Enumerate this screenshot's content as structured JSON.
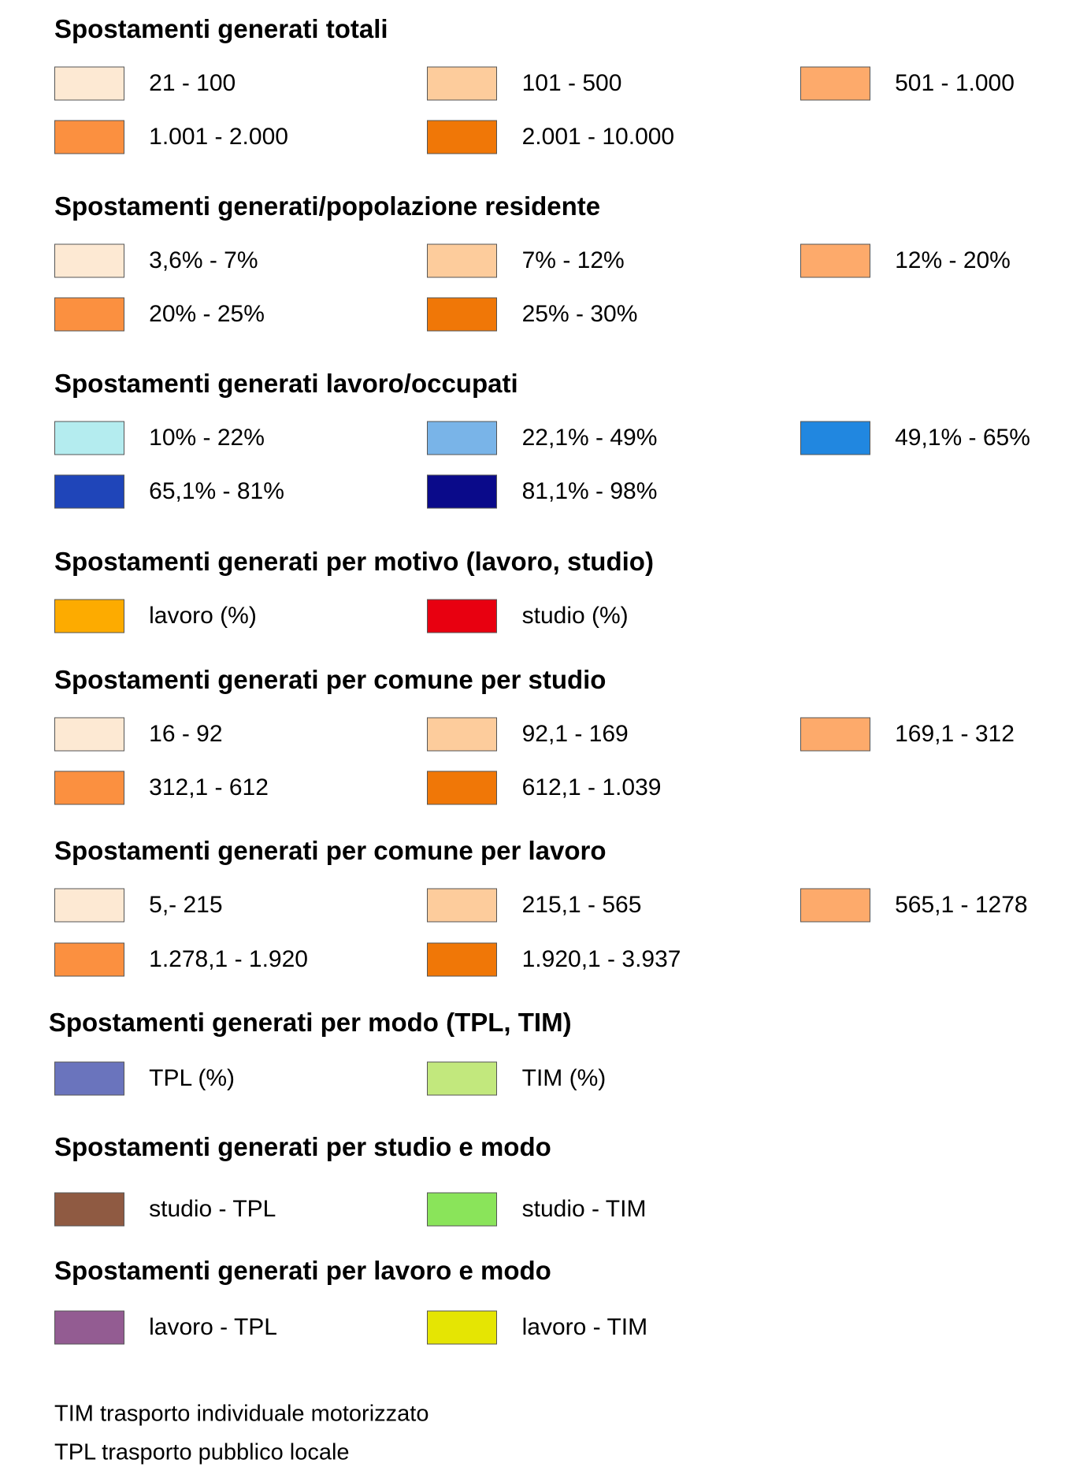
{
  "sections": [
    {
      "title": "Spostamenti generati totali",
      "items": [
        {
          "label": "21 - 100",
          "color": "#fde9d3"
        },
        {
          "label": "101 - 500",
          "color": "#fdcc9c"
        },
        {
          "label": "501 - 1.000",
          "color": "#fdaa6b"
        },
        {
          "label": "1.001 - 2.000",
          "color": "#fb9040"
        },
        {
          "label": "2.001 - 10.000",
          "color": "#f07707"
        }
      ]
    },
    {
      "title": "Spostamenti generati/popolazione residente",
      "items": [
        {
          "label": "3,6% - 7%",
          "color": "#fde9d3"
        },
        {
          "label": "7% - 12%",
          "color": "#fdcc9c"
        },
        {
          "label": "12% - 20%",
          "color": "#fdaa6b"
        },
        {
          "label": "20% - 25%",
          "color": "#fb9040"
        },
        {
          "label": "25% - 30%",
          "color": "#f07707"
        }
      ]
    },
    {
      "title": "Spostamenti generati lavoro/occupati",
      "items": [
        {
          "label": "10% - 22%",
          "color": "#b4ecef"
        },
        {
          "label": "22,1% - 49%",
          "color": "#79b4e8"
        },
        {
          "label": "49,1% - 65%",
          "color": "#2187e0"
        },
        {
          "label": "65,1% - 81%",
          "color": "#1f45b9"
        },
        {
          "label": "81,1% - 98%",
          "color": "#0a0a8a"
        }
      ]
    },
    {
      "title": "Spostamenti generati per motivo (lavoro, studio)",
      "items": [
        {
          "label": "lavoro (%)",
          "color": "#fdab00"
        },
        {
          "label": "studio (%)",
          "color": "#e80010"
        }
      ]
    },
    {
      "title": "Spostamenti generati per comune per studio",
      "items": [
        {
          "label": "16 - 92",
          "color": "#fde9d3"
        },
        {
          "label": "92,1 - 169",
          "color": "#fdcc9c"
        },
        {
          "label": "169,1 - 312",
          "color": "#fdaa6b"
        },
        {
          "label": "312,1 - 612",
          "color": "#fb9040"
        },
        {
          "label": "612,1 - 1.039",
          "color": "#f07707"
        }
      ]
    },
    {
      "title": "Spostamenti generati per comune per lavoro",
      "items": [
        {
          "label": "5,- 215",
          "color": "#fde9d3"
        },
        {
          "label": "215,1 - 565",
          "color": "#fdcc9c"
        },
        {
          "label": "565,1 - 1278",
          "color": "#fdaa6b"
        },
        {
          "label": "1.278,1 - 1.920",
          "color": "#fb9040"
        },
        {
          "label": "1.920,1 - 3.937",
          "color": "#f07707"
        }
      ]
    },
    {
      "title": "Spostamenti generati per modo (TPL, TIM)",
      "items": [
        {
          "label": "TPL (%)",
          "color": "#6a74bd"
        },
        {
          "label": "TIM (%)",
          "color": "#c2e87d"
        }
      ]
    },
    {
      "title": "Spostamenti generati per studio e modo",
      "items": [
        {
          "label": "studio - TPL",
          "color": "#8f5a42"
        },
        {
          "label": "studio - TIM",
          "color": "#8ae45a"
        }
      ]
    },
    {
      "title": "Spostamenti generati per lavoro e modo",
      "items": [
        {
          "label": "lavoro - TPL",
          "color": "#935c92"
        },
        {
          "label": "lavoro - TIM",
          "color": "#e5e503"
        }
      ]
    }
  ],
  "notes": [
    "TIM trasporto individuale motorizzato",
    "TPL trasporto pubblico locale"
  ]
}
